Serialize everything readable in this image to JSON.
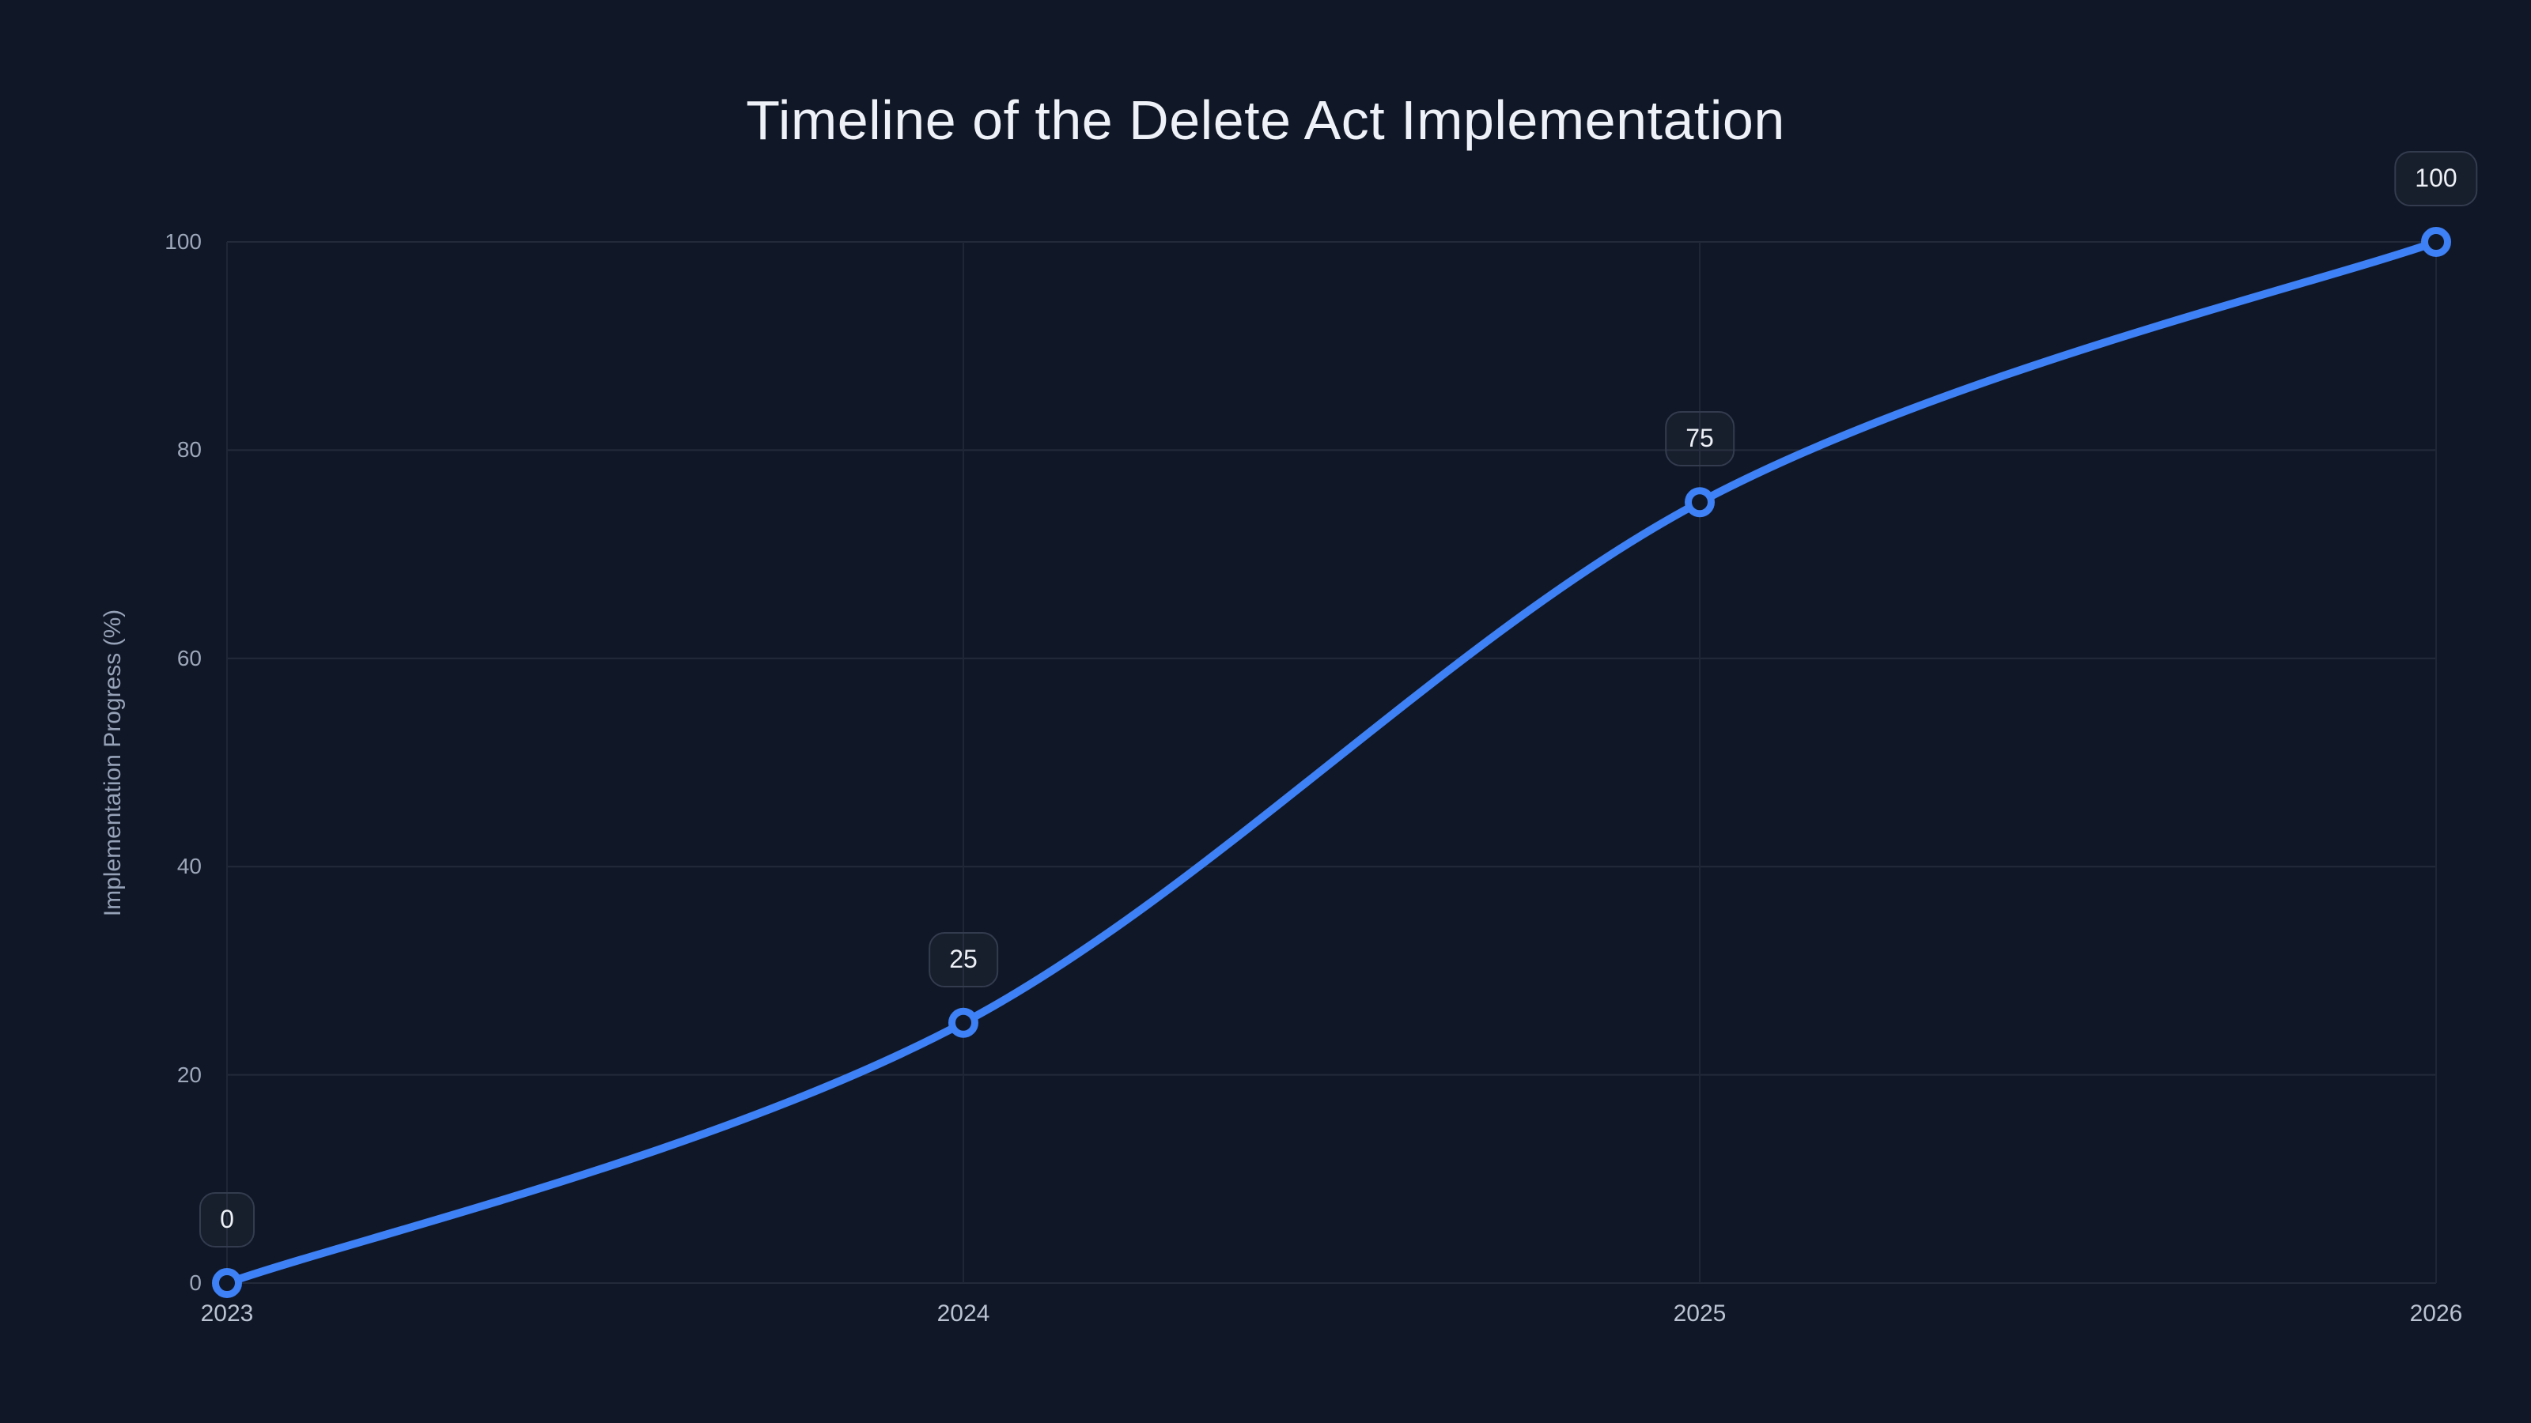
{
  "page": {
    "background": "#101726"
  },
  "chart_data": {
    "type": "line",
    "title": "Timeline of the Delete Act Implementation",
    "x": [
      "2023",
      "2024",
      "2025",
      "2026"
    ],
    "series": [
      {
        "name": "Implementation Progress",
        "values": [
          0,
          25,
          75,
          100
        ]
      }
    ],
    "point_labels": [
      "0",
      "25",
      "75",
      "100"
    ],
    "xlabel": "",
    "ylabel": "Implementation Progress (%)",
    "ylim": [
      0,
      100
    ],
    "yticks": [
      0,
      20,
      40,
      60,
      80,
      100
    ],
    "grid": true,
    "legend": "none",
    "line_shape": "spline",
    "marker_style": "open-circle",
    "colors": {
      "background": "#101726",
      "line": "#3e80f5",
      "marker_stroke": "#3e80f5",
      "marker_fill": "#101726",
      "grid_horizontal": "#232b3b",
      "grid_vertical": "#1f2736",
      "title_text": "#eef1f7",
      "ytick_text": "#9ca7ba",
      "xtick_text": "#bac3d2",
      "axis_title_text": "#96a2b8",
      "label_box_border": "#333c4e",
      "label_box_fill": "rgba(255,255,255,0.03)",
      "label_text": "#edf0f5"
    }
  }
}
